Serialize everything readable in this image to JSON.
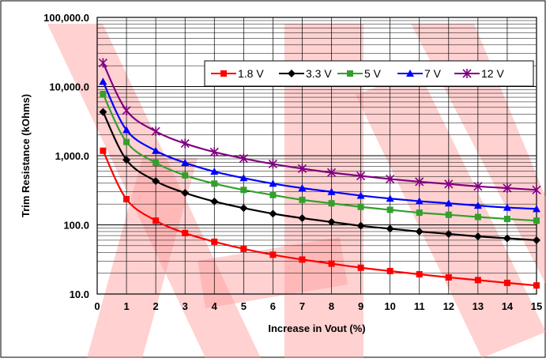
{
  "chart_data": {
    "type": "line",
    "title": "",
    "xlabel": "Increase in Vout (%)",
    "ylabel": "Trim Resistance (kOhms)",
    "y_scale": "log",
    "xlim": [
      0,
      15
    ],
    "ylim": [
      10,
      100000
    ],
    "grid": true,
    "legend_position": "top-right",
    "x_ticks": [
      "0",
      "1",
      "2",
      "3",
      "4",
      "5",
      "6",
      "7",
      "8",
      "9",
      "10",
      "11",
      "12",
      "13",
      "14",
      "15"
    ],
    "y_ticks": [
      "10.0",
      "100.0",
      "1,000.0",
      "10,000.0",
      "100,000.0"
    ],
    "x": [
      0.2,
      1,
      2,
      3,
      4,
      5,
      6,
      7,
      8,
      9,
      10,
      11,
      12,
      13,
      14,
      15
    ],
    "series": [
      {
        "name": "1.8 V",
        "color": "#ff0000",
        "marker": "square",
        "values": [
          1180,
          235,
          115,
          76,
          57,
          45,
          37,
          31.5,
          27.5,
          24,
          21.5,
          19.3,
          17.4,
          15.9,
          14.5,
          13.3
        ]
      },
      {
        "name": "3.3 V",
        "color": "#000000",
        "marker": "diamond",
        "values": [
          4300,
          870,
          430,
          290,
          218,
          175,
          145,
          125,
          110,
          97,
          88,
          80,
          74,
          68,
          64,
          60
        ]
      },
      {
        "name": "5 V",
        "color": "#33a02c",
        "marker": "square",
        "values": [
          7800,
          1580,
          790,
          520,
          395,
          320,
          270,
          230,
          205,
          182,
          165,
          150,
          140,
          130,
          122,
          115
        ]
      },
      {
        "name": "7 V",
        "color": "#0000ff",
        "marker": "triangle",
        "values": [
          11800,
          2350,
          1180,
          790,
          590,
          475,
          395,
          340,
          300,
          265,
          240,
          220,
          205,
          190,
          178,
          170
        ]
      },
      {
        "name": "12 V",
        "color": "#800080",
        "marker": "asterisk",
        "values": [
          22000,
          4500,
          2250,
          1500,
          1130,
          910,
          760,
          650,
          570,
          510,
          460,
          420,
          390,
          360,
          340,
          320
        ]
      }
    ]
  }
}
